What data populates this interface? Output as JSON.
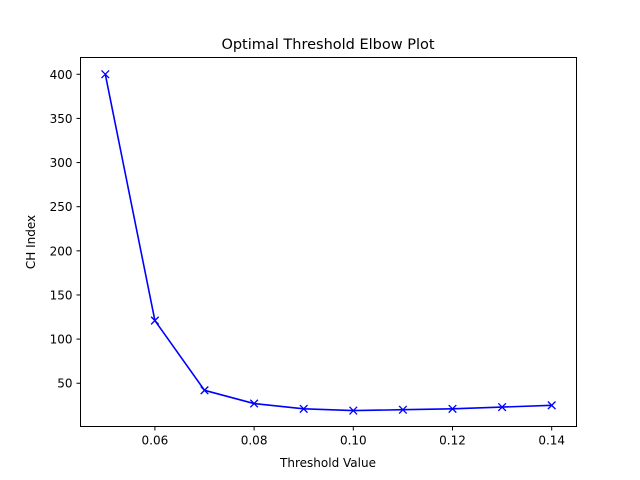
{
  "chart_data": {
    "type": "line",
    "title": "Optimal Threshold Elbow Plot",
    "xlabel": "Threshold Value",
    "ylabel": "CH Index",
    "xlim": [
      0.045,
      0.145
    ],
    "ylim": [
      1,
      419
    ],
    "xticks": [
      "0.06",
      "0.08",
      "0.10",
      "0.12",
      "0.14"
    ],
    "yticks": [
      "50",
      "100",
      "150",
      "200",
      "250",
      "300",
      "350",
      "400"
    ],
    "grid": false,
    "legend": "none",
    "series": [
      {
        "color": "#0000ff",
        "marker": "x",
        "x": [
          0.05,
          0.06,
          0.07,
          0.08,
          0.09,
          0.1,
          0.11,
          0.12,
          0.13,
          0.14
        ],
        "y": [
          400,
          121,
          42,
          27,
          21,
          19,
          20,
          21,
          23,
          25
        ]
      }
    ]
  }
}
